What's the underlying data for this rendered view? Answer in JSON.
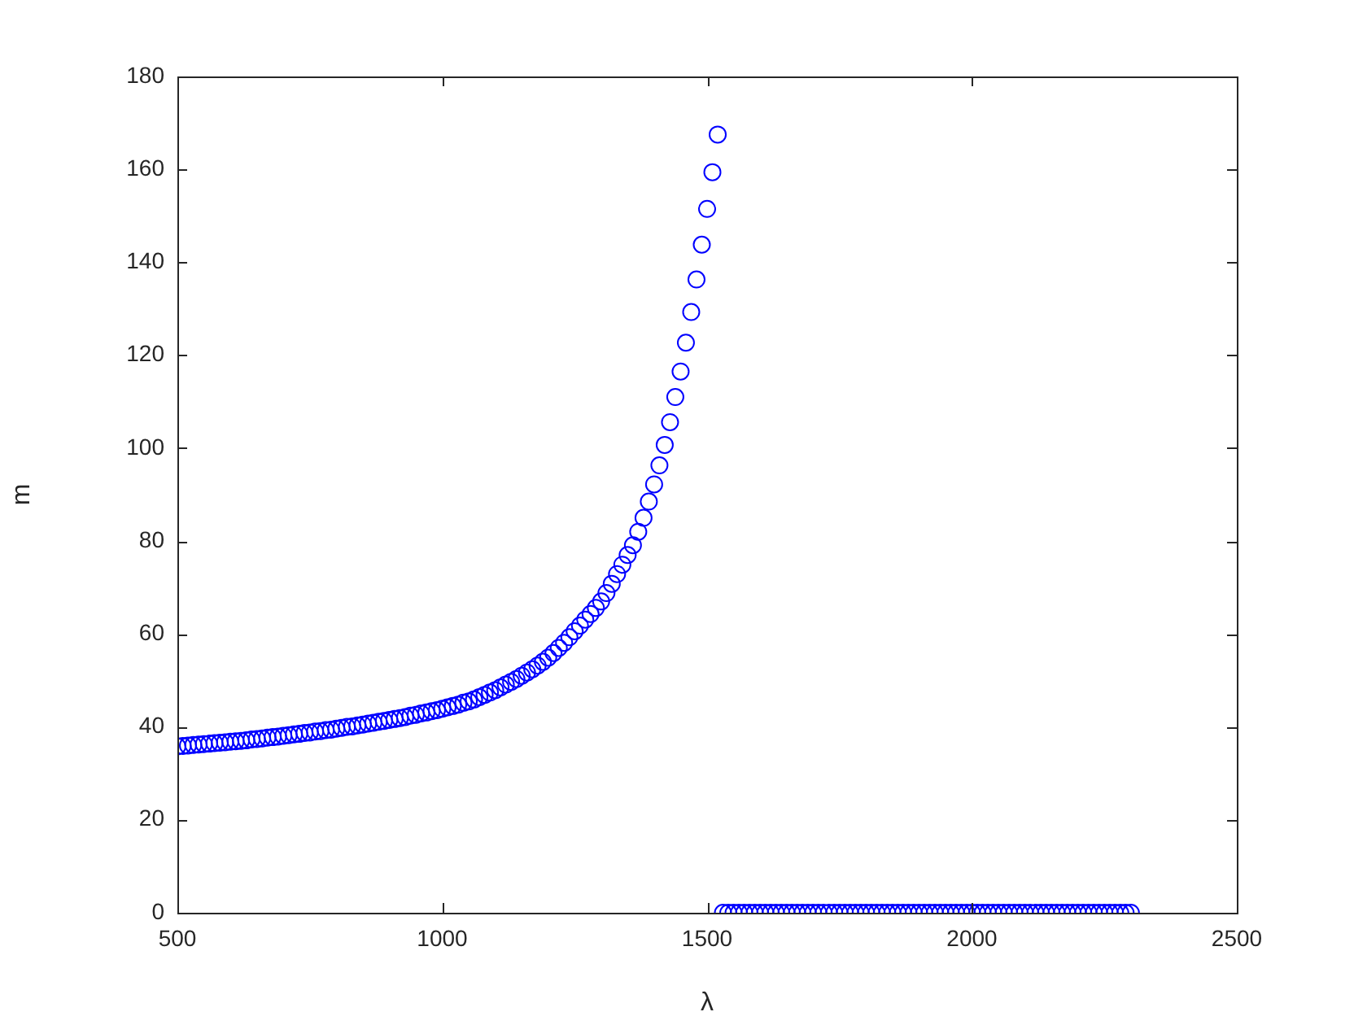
{
  "chart_data": {
    "type": "scatter",
    "xlabel": "λ",
    "ylabel": "m",
    "marker": "circle",
    "xlim": [
      500,
      2500
    ],
    "xticks": [
      500,
      1000,
      1500,
      2000,
      2500
    ],
    "ylim": [
      0,
      180
    ],
    "yticks": [
      0,
      20,
      40,
      60,
      80,
      100,
      120,
      140,
      160,
      180
    ],
    "x": [
      500,
      510,
      520,
      530,
      540,
      550,
      560,
      570,
      580,
      590,
      600,
      610,
      620,
      630,
      640,
      650,
      660,
      670,
      680,
      690,
      700,
      710,
      720,
      730,
      740,
      750,
      760,
      770,
      780,
      790,
      800,
      810,
      820,
      830,
      840,
      850,
      860,
      870,
      880,
      890,
      900,
      910,
      920,
      930,
      940,
      950,
      960,
      970,
      980,
      990,
      1000,
      1010,
      1020,
      1030,
      1040,
      1050,
      1060,
      1070,
      1080,
      1090,
      1100,
      1110,
      1120,
      1130,
      1140,
      1150,
      1160,
      1170,
      1180,
      1190,
      1200,
      1210,
      1220,
      1230,
      1240,
      1250,
      1260,
      1270,
      1280,
      1290,
      1300,
      1310,
      1320,
      1330,
      1340,
      1350,
      1360,
      1370,
      1380,
      1390,
      1400,
      1410,
      1420,
      1430,
      1440,
      1450,
      1460,
      1470,
      1480,
      1490,
      1500,
      1510,
      1520,
      1530,
      1540,
      1550,
      1560,
      1570,
      1580,
      1590,
      1600,
      1610,
      1620,
      1630,
      1640,
      1650,
      1660,
      1670,
      1680,
      1690,
      1700,
      1710,
      1720,
      1730,
      1740,
      1750,
      1760,
      1770,
      1780,
      1790,
      1800,
      1810,
      1820,
      1830,
      1840,
      1850,
      1860,
      1870,
      1880,
      1890,
      1900,
      1910,
      1920,
      1930,
      1940,
      1950,
      1960,
      1970,
      1980,
      1990,
      2000,
      2010,
      2020,
      2030,
      2040,
      2050,
      2060,
      2070,
      2080,
      2090,
      2100,
      2110,
      2120,
      2130,
      2140,
      2150,
      2160,
      2170,
      2180,
      2190,
      2200,
      2210,
      2220,
      2230,
      2240,
      2250,
      2260,
      2270,
      2280,
      2290,
      2300
    ],
    "series": [
      {
        "color": "#0000ff",
        "values": [
          35.8,
          35.9,
          36.0,
          36.1,
          36.2,
          36.3,
          36.4,
          36.5,
          36.6,
          36.7,
          36.8,
          36.9,
          37.0,
          37.1,
          37.3,
          37.4,
          37.5,
          37.7,
          37.8,
          37.9,
          38.1,
          38.2,
          38.4,
          38.5,
          38.7,
          38.8,
          39.0,
          39.1,
          39.3,
          39.4,
          39.6,
          39.8,
          40.0,
          40.1,
          40.3,
          40.5,
          40.7,
          40.9,
          41.1,
          41.3,
          41.5,
          41.7,
          41.9,
          42.1,
          42.4,
          42.6,
          42.9,
          43.1,
          43.4,
          43.6,
          43.9,
          44.2,
          44.5,
          44.8,
          45.2,
          45.5,
          45.9,
          46.4,
          46.9,
          47.4,
          47.9,
          48.5,
          49.1,
          49.7,
          50.3,
          51.0,
          51.7,
          52.4,
          53.2,
          54.0,
          54.9,
          55.9,
          57.0,
          58.1,
          59.3,
          60.6,
          61.8,
          63.1,
          64.3,
          65.6,
          67.0,
          68.8,
          70.8,
          72.9,
          74.9,
          77.0,
          79.1,
          82.0,
          85.0,
          88.5,
          92.2,
          96.3,
          100.7,
          105.6,
          111.0,
          116.5,
          122.7,
          129.3,
          136.3,
          143.8,
          151.5,
          159.4,
          167.5,
          0,
          0,
          0,
          0,
          0,
          0,
          0,
          0,
          0,
          0,
          0,
          0,
          0,
          0,
          0,
          0,
          0,
          0,
          0,
          0,
          0,
          0,
          0,
          0,
          0,
          0,
          0,
          0,
          0,
          0,
          0,
          0,
          0,
          0,
          0,
          0,
          0,
          0,
          0,
          0,
          0,
          0,
          0,
          0,
          0,
          0,
          0,
          0,
          0,
          0,
          0,
          0,
          0,
          0,
          0,
          0,
          0,
          0,
          0,
          0,
          0,
          0,
          0,
          0,
          0,
          0,
          0,
          0,
          0,
          0,
          0,
          0,
          0,
          0,
          0,
          0,
          0,
          0
        ]
      }
    ]
  }
}
